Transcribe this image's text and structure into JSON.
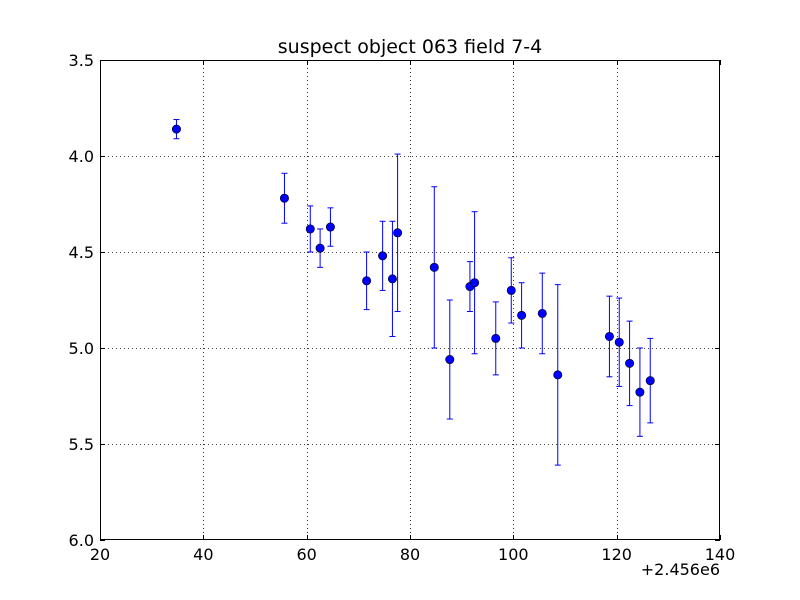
{
  "chart_data": {
    "type": "scatter",
    "title": "suspect object 063 field 7-4",
    "xlabel": "",
    "ylabel": "",
    "x_offset_label": "+2.456e6",
    "xlim": [
      20,
      140
    ],
    "ylim": [
      6.0,
      3.5
    ],
    "y_inverted": true,
    "x_ticks": [
      20,
      40,
      60,
      80,
      100,
      120,
      140
    ],
    "y_ticks": [
      3.5,
      4.0,
      4.5,
      5.0,
      5.5,
      6.0
    ],
    "x_tick_labels": [
      "20",
      "40",
      "60",
      "80",
      "100",
      "120",
      "140"
    ],
    "y_tick_labels": [
      "3.5",
      "4.0",
      "4.5",
      "5.0",
      "5.5",
      "6.0"
    ],
    "grid": true,
    "marker_color": "#0000ff",
    "points": [
      {
        "x": 34.8,
        "y": 3.86,
        "err": 0.05
      },
      {
        "x": 55.7,
        "y": 4.22,
        "err": 0.13
      },
      {
        "x": 60.7,
        "y": 4.38,
        "err": 0.12
      },
      {
        "x": 62.6,
        "y": 4.48,
        "err": 0.1
      },
      {
        "x": 64.6,
        "y": 4.37,
        "err": 0.1
      },
      {
        "x": 71.6,
        "y": 4.65,
        "err": 0.15
      },
      {
        "x": 74.7,
        "y": 4.52,
        "err": 0.18
      },
      {
        "x": 76.6,
        "y": 4.64,
        "err": 0.3
      },
      {
        "x": 77.6,
        "y": 4.4,
        "err": 0.41
      },
      {
        "x": 84.7,
        "y": 4.58,
        "err": 0.42
      },
      {
        "x": 87.7,
        "y": 5.06,
        "err": 0.31
      },
      {
        "x": 91.6,
        "y": 4.68,
        "err": 0.13
      },
      {
        "x": 92.5,
        "y": 4.66,
        "err": 0.37
      },
      {
        "x": 96.6,
        "y": 4.95,
        "err": 0.19
      },
      {
        "x": 99.6,
        "y": 4.7,
        "err": 0.17
      },
      {
        "x": 101.6,
        "y": 4.83,
        "err": 0.17
      },
      {
        "x": 105.6,
        "y": 4.82,
        "err": 0.21
      },
      {
        "x": 108.6,
        "y": 5.14,
        "err": 0.47
      },
      {
        "x": 118.6,
        "y": 4.94,
        "err": 0.21
      },
      {
        "x": 120.5,
        "y": 4.97,
        "err": 0.23
      },
      {
        "x": 122.5,
        "y": 5.08,
        "err": 0.22
      },
      {
        "x": 124.5,
        "y": 5.23,
        "err": 0.23
      },
      {
        "x": 126.5,
        "y": 5.17,
        "err": 0.22
      }
    ]
  }
}
